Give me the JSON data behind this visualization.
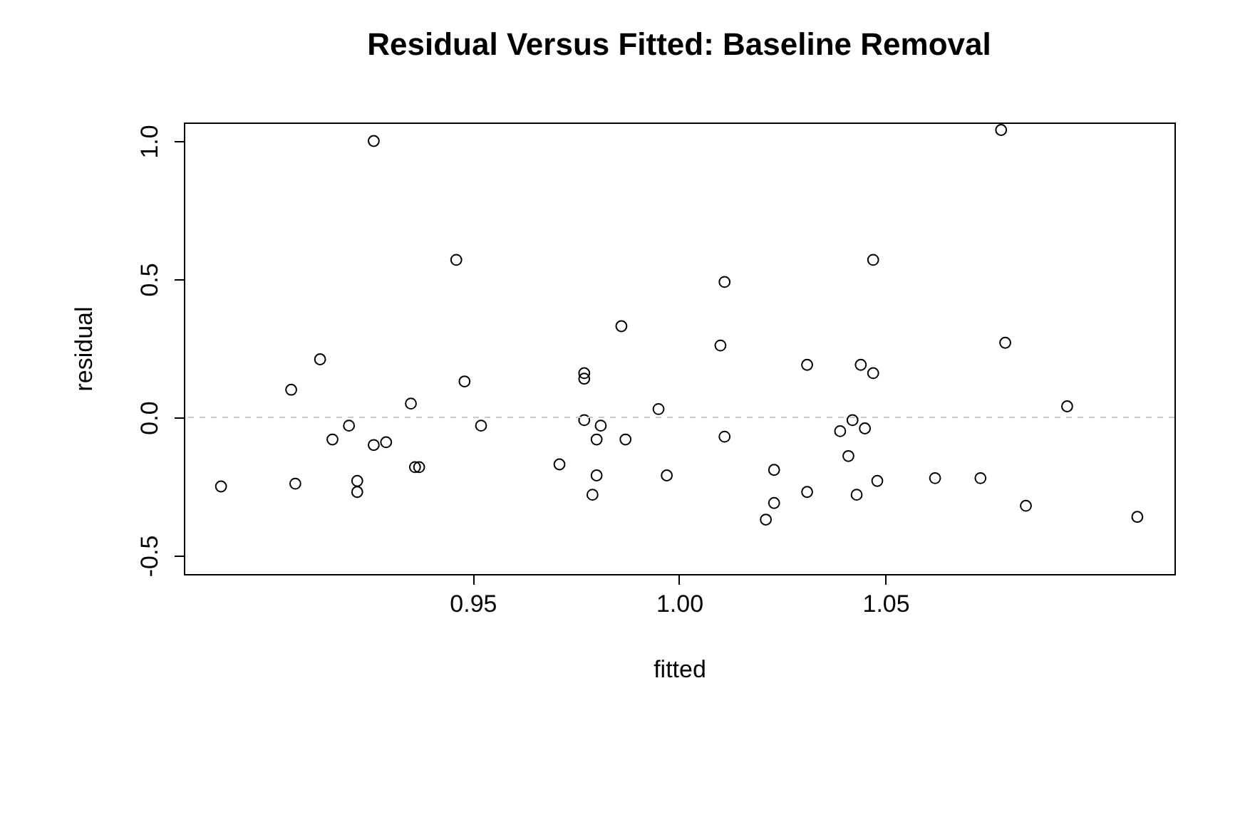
{
  "chart_data": {
    "type": "scatter",
    "title": "Residual Versus Fitted: Baseline Removal",
    "xlabel": "fitted",
    "ylabel": "residual",
    "x": [
      0.889,
      0.906,
      0.907,
      0.913,
      0.916,
      0.92,
      0.922,
      0.922,
      0.926,
      0.926,
      0.929,
      0.935,
      0.936,
      0.937,
      0.946,
      0.948,
      0.952,
      0.971,
      0.977,
      0.977,
      0.977,
      0.981,
      0.98,
      0.98,
      0.979,
      0.986,
      0.987,
      0.995,
      0.997,
      1.01,
      1.011,
      1.011,
      1.021,
      1.023,
      1.023,
      1.031,
      1.031,
      1.039,
      1.041,
      1.042,
      1.043,
      1.044,
      1.045,
      1.047,
      1.047,
      1.048,
      1.062,
      1.073,
      1.078,
      1.079,
      1.084,
      1.094,
      1.111
    ],
    "series": [
      {
        "color": "#000000",
        "values": [
          -0.25,
          0.1,
          -0.24,
          0.21,
          -0.08,
          -0.03,
          -0.23,
          -0.27,
          1.0,
          -0.1,
          -0.09,
          0.05,
          -0.18,
          -0.18,
          0.57,
          0.13,
          -0.03,
          -0.17,
          0.16,
          0.14,
          -0.01,
          -0.03,
          -0.08,
          -0.21,
          -0.28,
          0.33,
          -0.08,
          0.03,
          -0.21,
          0.26,
          0.49,
          -0.07,
          -0.37,
          -0.31,
          -0.19,
          -0.27,
          0.19,
          -0.05,
          -0.14,
          -0.01,
          -0.28,
          0.19,
          -0.04,
          0.16,
          0.57,
          -0.23,
          -0.22,
          -0.22,
          1.04,
          0.27,
          -0.32,
          0.04,
          -0.36
        ]
      }
    ],
    "xlim": [
      0.88,
      1.12
    ],
    "xticks": [
      0.95,
      {
        "value": 1.0,
        "label": "1.00"
      },
      1.05
    ],
    "ylim": [
      -0.567,
      1.067
    ],
    "yticks": [
      -0.5,
      {
        "value": 0,
        "label": "0.0"
      },
      0.5,
      {
        "value": 1.0,
        "label": "1.0"
      }
    ],
    "marker": "circle",
    "grid": false,
    "ref_lines": [
      {
        "axis": "y",
        "value": 0,
        "color": "#c8c8c8",
        "line_style": "dashed"
      }
    ]
  }
}
